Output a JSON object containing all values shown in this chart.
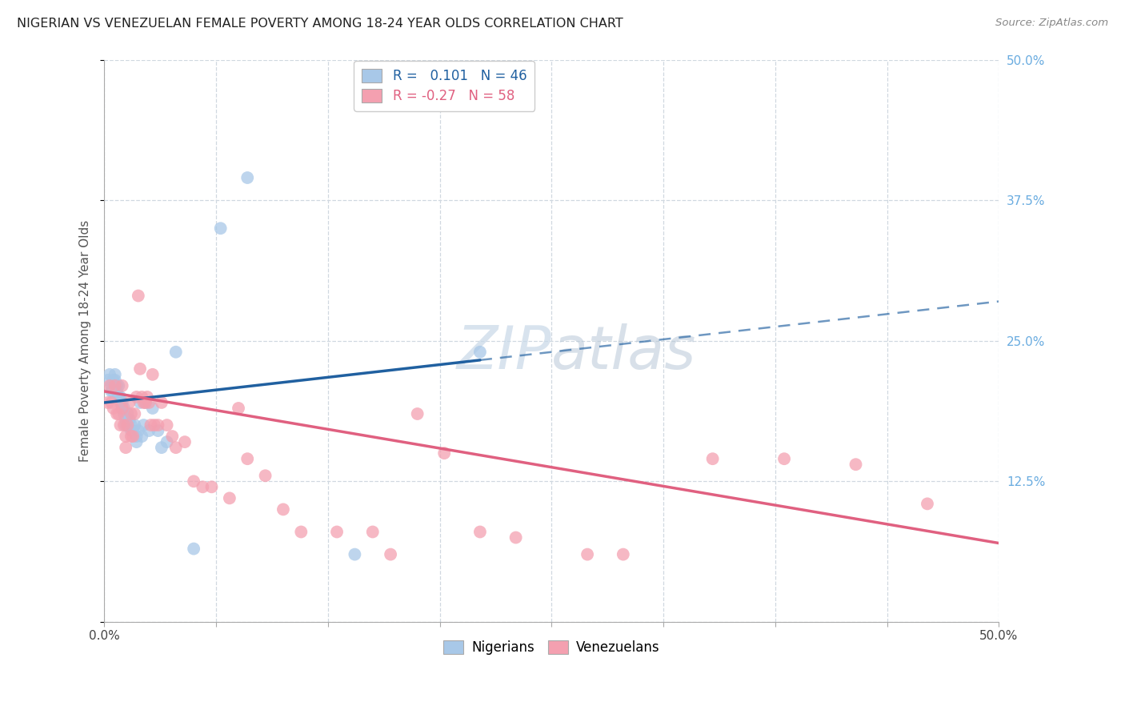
{
  "title": "NIGERIAN VS VENEZUELAN FEMALE POVERTY AMONG 18-24 YEAR OLDS CORRELATION CHART",
  "source": "Source: ZipAtlas.com",
  "ylabel": "Female Poverty Among 18-24 Year Olds",
  "xlim": [
    0,
    0.5
  ],
  "ylim": [
    0,
    0.5
  ],
  "xticks": [
    0.0,
    0.0625,
    0.125,
    0.1875,
    0.25,
    0.3125,
    0.375,
    0.4375,
    0.5
  ],
  "yticks": [
    0.0,
    0.125,
    0.25,
    0.375,
    0.5
  ],
  "nigeria_R": 0.101,
  "nigeria_N": 46,
  "venezuela_R": -0.27,
  "venezuela_N": 58,
  "nigeria_color": "#a8c8e8",
  "venezuela_color": "#f4a0b0",
  "nigeria_line_color": "#2060a0",
  "venezuela_line_color": "#e06080",
  "background_color": "#ffffff",
  "grid_color": "#d0d8e0",
  "title_color": "#222222",
  "right_tick_color": "#6aace0",
  "watermark_color": "#c8d8e8",
  "nigeria_points_x": [
    0.002,
    0.003,
    0.004,
    0.004,
    0.005,
    0.005,
    0.006,
    0.006,
    0.006,
    0.007,
    0.007,
    0.008,
    0.008,
    0.009,
    0.009,
    0.01,
    0.01,
    0.011,
    0.011,
    0.012,
    0.012,
    0.013,
    0.013,
    0.014,
    0.015,
    0.015,
    0.016,
    0.017,
    0.018,
    0.018,
    0.019,
    0.02,
    0.021,
    0.022,
    0.023,
    0.025,
    0.027,
    0.03,
    0.032,
    0.035,
    0.04,
    0.05,
    0.065,
    0.08,
    0.14,
    0.21
  ],
  "nigeria_points_y": [
    0.215,
    0.22,
    0.21,
    0.205,
    0.215,
    0.205,
    0.22,
    0.215,
    0.21,
    0.21,
    0.205,
    0.21,
    0.2,
    0.195,
    0.2,
    0.19,
    0.195,
    0.185,
    0.19,
    0.18,
    0.175,
    0.185,
    0.175,
    0.18,
    0.175,
    0.17,
    0.17,
    0.175,
    0.165,
    0.16,
    0.17,
    0.195,
    0.165,
    0.175,
    0.195,
    0.17,
    0.19,
    0.17,
    0.155,
    0.16,
    0.24,
    0.065,
    0.35,
    0.395,
    0.06,
    0.24
  ],
  "venezuela_points_x": [
    0.002,
    0.003,
    0.004,
    0.005,
    0.006,
    0.007,
    0.008,
    0.009,
    0.01,
    0.01,
    0.011,
    0.012,
    0.012,
    0.013,
    0.014,
    0.015,
    0.015,
    0.016,
    0.017,
    0.018,
    0.019,
    0.02,
    0.021,
    0.022,
    0.023,
    0.024,
    0.025,
    0.026,
    0.027,
    0.028,
    0.03,
    0.032,
    0.035,
    0.038,
    0.04,
    0.045,
    0.05,
    0.055,
    0.06,
    0.07,
    0.075,
    0.08,
    0.09,
    0.1,
    0.11,
    0.13,
    0.15,
    0.16,
    0.175,
    0.19,
    0.21,
    0.23,
    0.27,
    0.29,
    0.34,
    0.38,
    0.42,
    0.46
  ],
  "venezuela_points_y": [
    0.195,
    0.21,
    0.195,
    0.19,
    0.21,
    0.185,
    0.185,
    0.175,
    0.19,
    0.21,
    0.175,
    0.155,
    0.165,
    0.175,
    0.195,
    0.165,
    0.185,
    0.165,
    0.185,
    0.2,
    0.29,
    0.225,
    0.2,
    0.195,
    0.195,
    0.2,
    0.195,
    0.175,
    0.22,
    0.175,
    0.175,
    0.195,
    0.175,
    0.165,
    0.155,
    0.16,
    0.125,
    0.12,
    0.12,
    0.11,
    0.19,
    0.145,
    0.13,
    0.1,
    0.08,
    0.08,
    0.08,
    0.06,
    0.185,
    0.15,
    0.08,
    0.075,
    0.06,
    0.06,
    0.145,
    0.145,
    0.14,
    0.105
  ],
  "nigeria_line_y0": 0.195,
  "nigeria_line_y1": 0.285,
  "venezuela_line_y0": 0.205,
  "venezuela_line_y1": 0.07,
  "solid_cutoff": 0.21
}
